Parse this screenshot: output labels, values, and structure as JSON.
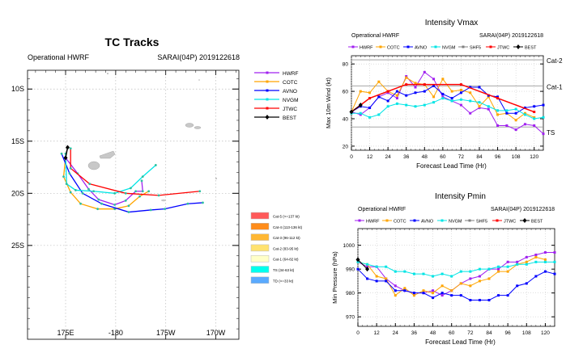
{
  "colors": {
    "HWRF": "#a020f0",
    "COTC": "#ffa500",
    "AVNO": "#0000ff",
    "NVGM": "#00e5e5",
    "SHF5": "#808080",
    "JTWC": "#ff0000",
    "BEST": "#000000"
  },
  "chart_data": [
    {
      "type": "line",
      "title": "TC Tracks",
      "subtitle_left": "Operational HWRF",
      "subtitle_right": "SARAI(04P) 2019122618",
      "x_ticks": [
        "175E",
        "-180",
        "175W",
        "170W"
      ],
      "x_tick_values": [
        175,
        180,
        185,
        190
      ],
      "y_ticks": [
        "10S",
        "15S",
        "20S",
        "25S"
      ],
      "y_tick_values": [
        -10,
        -15,
        -20,
        -25
      ],
      "xlim": [
        171.2,
        192.3
      ],
      "ylim": [
        -34,
        -8.2
      ],
      "grid": true,
      "legend": "right",
      "series": [
        {
          "name": "HWRF",
          "points": [
            [
              175.0,
              -16.6
            ],
            [
              176.2,
              -18.1
            ],
            [
              177.3,
              -19.6
            ],
            [
              178.3,
              -20.6
            ],
            [
              179.9,
              -21.1
            ],
            [
              181.0,
              -20.7
            ],
            [
              182.0,
              -19.8
            ],
            [
              182.7,
              -19.8
            ],
            [
              182.6,
              -18.8
            ]
          ]
        },
        {
          "name": "COTC",
          "points": [
            [
              175.0,
              -16.6
            ],
            [
              174.8,
              -18.4
            ],
            [
              175.5,
              -19.9
            ],
            [
              176.5,
              -21.0
            ],
            [
              178.2,
              -21.5
            ],
            [
              179.9,
              -21.5
            ],
            [
              181.3,
              -21.2
            ],
            [
              182.4,
              -20.3
            ],
            [
              183.3,
              -19.8
            ]
          ]
        },
        {
          "name": "AVNO",
          "points": [
            [
              174.6,
              -16.2
            ],
            [
              175.4,
              -18.1
            ],
            [
              176.7,
              -20.0
            ],
            [
              178.6,
              -21.0
            ],
            [
              181.3,
              -21.8
            ],
            [
              183.5,
              -21.6
            ],
            [
              184.9,
              -21.5
            ],
            [
              187.2,
              -21.0
            ],
            [
              188.7,
              -20.9
            ]
          ]
        },
        {
          "name": "NVGM",
          "points": [
            [
              175.0,
              -16.2
            ],
            [
              175.1,
              -19.1
            ],
            [
              176.0,
              -19.7
            ],
            [
              177.8,
              -19.8
            ],
            [
              179.9,
              -20.0
            ],
            [
              181.5,
              -19.5
            ],
            [
              182.7,
              -18.4
            ],
            [
              184.0,
              -17.3
            ]
          ]
        },
        {
          "name": "JTWC",
          "points": [
            [
              175.5,
              -15.7
            ],
            [
              175.5,
              -17.6
            ],
            [
              177.4,
              -19.1
            ],
            [
              181.0,
              -20.0
            ],
            [
              184.3,
              -20.2
            ],
            [
              188.4,
              -19.8
            ]
          ]
        },
        {
          "name": "BEST",
          "points": [
            [
              175.2,
              -15.6
            ],
            [
              175.0,
              -16.6
            ]
          ]
        }
      ],
      "category_legend": [
        {
          "label": "Cat-5 (>=137 kt)",
          "color": "#ff5a5a"
        },
        {
          "label": "Cat-4 (113-136 kt)",
          "color": "#ff8c1a"
        },
        {
          "label": "Cat-3 (96-112 kt)",
          "color": "#ffb733"
        },
        {
          "label": "Cat-2 (83-95 kt)",
          "color": "#ffe270"
        },
        {
          "label": "Cat-1 (64-82 kt)",
          "color": "#ffffc8"
        },
        {
          "label": "TS (34-63 kt)",
          "color": "#00ffee"
        },
        {
          "label": "TD (<=33 kt)",
          "color": "#5aaaff"
        }
      ]
    },
    {
      "type": "line",
      "title": "Intensity Vmax",
      "subtitle_left": "Operational HWRF",
      "subtitle_right": "SARAI(04P) 2019122618",
      "xlabel": "Forecast Lead Time (Hr)",
      "ylabel": "Max 10m Wind (kt)",
      "xlim": [
        0,
        126
      ],
      "ylim": [
        17,
        86
      ],
      "x_ticks": [
        0,
        12,
        24,
        36,
        48,
        60,
        72,
        84,
        96,
        108,
        120
      ],
      "y_ticks": [
        20,
        40,
        60,
        80
      ],
      "grid": true,
      "legend": "top",
      "reference_lines": [
        {
          "label": "Cat-2",
          "value": 83
        },
        {
          "label": "Cat-1",
          "value": 64
        },
        {
          "label": "TS",
          "value": 34
        }
      ],
      "series": [
        {
          "name": "HWRF",
          "x": [
            0,
            6,
            12,
            18,
            24,
            30,
            36,
            42,
            48,
            54,
            60,
            66,
            72,
            78,
            84,
            90,
            96,
            102,
            108,
            114,
            120,
            126
          ],
          "values": [
            45,
            43,
            48,
            56,
            59,
            55,
            71,
            63,
            74,
            69,
            56,
            53,
            50,
            44,
            48,
            47,
            35,
            35,
            32,
            36,
            35,
            29
          ]
        },
        {
          "name": "COTC",
          "x": [
            0,
            6,
            12,
            18,
            24,
            30,
            36,
            42,
            48,
            54,
            60,
            66,
            72,
            78,
            84,
            90,
            96,
            102,
            108,
            114,
            120
          ],
          "values": [
            45,
            60,
            59,
            67,
            60,
            57,
            70,
            66,
            65,
            56,
            69,
            60,
            61,
            59,
            49,
            56,
            43,
            44,
            39,
            44,
            41
          ]
        },
        {
          "name": "AVNO",
          "x": [
            0,
            6,
            12,
            18,
            24,
            30,
            36,
            42,
            48,
            54,
            60,
            66,
            72,
            78,
            84,
            90,
            96,
            102,
            108,
            114,
            120,
            126
          ],
          "values": [
            45,
            49,
            48,
            56,
            53,
            60,
            57,
            59,
            60,
            64,
            58,
            55,
            59,
            63,
            63,
            57,
            56,
            44,
            44,
            48,
            49,
            50
          ]
        },
        {
          "name": "NVGM",
          "x": [
            0,
            6,
            12,
            18,
            24,
            30,
            36,
            42,
            48,
            54,
            60,
            66,
            72,
            78,
            84,
            90,
            96,
            102,
            108,
            114,
            120,
            126
          ],
          "values": [
            44,
            44,
            41,
            43,
            49,
            51,
            50,
            49,
            50,
            52,
            55,
            53,
            54,
            53,
            52,
            49,
            46,
            46,
            47,
            43,
            40,
            41
          ]
        },
        {
          "name": "SHF5",
          "x": [],
          "values": []
        },
        {
          "name": "JTWC",
          "x": [
            0,
            12,
            24,
            36,
            48,
            72,
            96,
            120
          ],
          "values": [
            45,
            55,
            60,
            65,
            65,
            65,
            55,
            45
          ]
        },
        {
          "name": "BEST",
          "x": [
            0,
            6
          ],
          "values": [
            45,
            50
          ]
        }
      ]
    },
    {
      "type": "line",
      "title": "Intensity Pmin",
      "subtitle_left": "Operational HWRF",
      "subtitle_right": "SARAI(04P) 2019122618",
      "xlabel": "Forecast Lead Time (Hr)",
      "ylabel": "Min Pressure (hPa)",
      "xlim": [
        0,
        126
      ],
      "ylim": [
        966,
        1007
      ],
      "x_ticks": [
        0,
        12,
        24,
        36,
        48,
        60,
        72,
        84,
        96,
        108,
        120
      ],
      "y_ticks": [
        970,
        980,
        990,
        1000
      ],
      "grid": true,
      "legend": "top",
      "series": [
        {
          "name": "HWRF",
          "x": [
            0,
            6,
            12,
            18,
            24,
            30,
            36,
            42,
            48,
            54,
            60,
            66,
            72,
            78,
            84,
            90,
            96,
            102,
            108,
            114,
            120,
            126
          ],
          "values": [
            993,
            991,
            991,
            986,
            983,
            981,
            980,
            980,
            981,
            979,
            981,
            984,
            986,
            987,
            990,
            990,
            993,
            993,
            995,
            996,
            997,
            997
          ]
        },
        {
          "name": "COTC",
          "x": [
            0,
            6,
            12,
            18,
            24,
            30,
            36,
            42,
            48,
            54,
            60,
            66,
            72,
            78,
            84,
            90,
            96,
            102,
            108,
            114,
            120
          ],
          "values": [
            993,
            992,
            987,
            986,
            979,
            982,
            979,
            981,
            980,
            983,
            981,
            984,
            983,
            985,
            986,
            989,
            989,
            992,
            993,
            995,
            994
          ]
        },
        {
          "name": "AVNO",
          "x": [
            0,
            6,
            12,
            18,
            24,
            30,
            36,
            42,
            48,
            54,
            60,
            66,
            72,
            78,
            84,
            90,
            96,
            102,
            108,
            114,
            120,
            126
          ],
          "values": [
            990,
            986,
            985,
            985,
            981,
            981,
            980,
            980,
            978,
            980,
            979,
            979,
            977,
            977,
            977,
            979,
            979,
            983,
            984,
            987,
            989,
            988
          ]
        },
        {
          "name": "NVGM",
          "x": [
            0,
            6,
            12,
            18,
            24,
            30,
            36,
            42,
            48,
            54,
            60,
            66,
            72,
            78,
            84,
            90,
            96,
            102,
            108,
            114,
            120,
            126
          ],
          "values": [
            993,
            992,
            991,
            991,
            989,
            989,
            988,
            988,
            987,
            988,
            987,
            989,
            989,
            990,
            990,
            991,
            991,
            992,
            992,
            993,
            993,
            993
          ]
        },
        {
          "name": "SHF5",
          "x": [],
          "values": []
        },
        {
          "name": "JTWC",
          "x": [],
          "values": []
        },
        {
          "name": "BEST",
          "x": [
            0,
            6
          ],
          "values": [
            994,
            990
          ]
        }
      ]
    }
  ]
}
